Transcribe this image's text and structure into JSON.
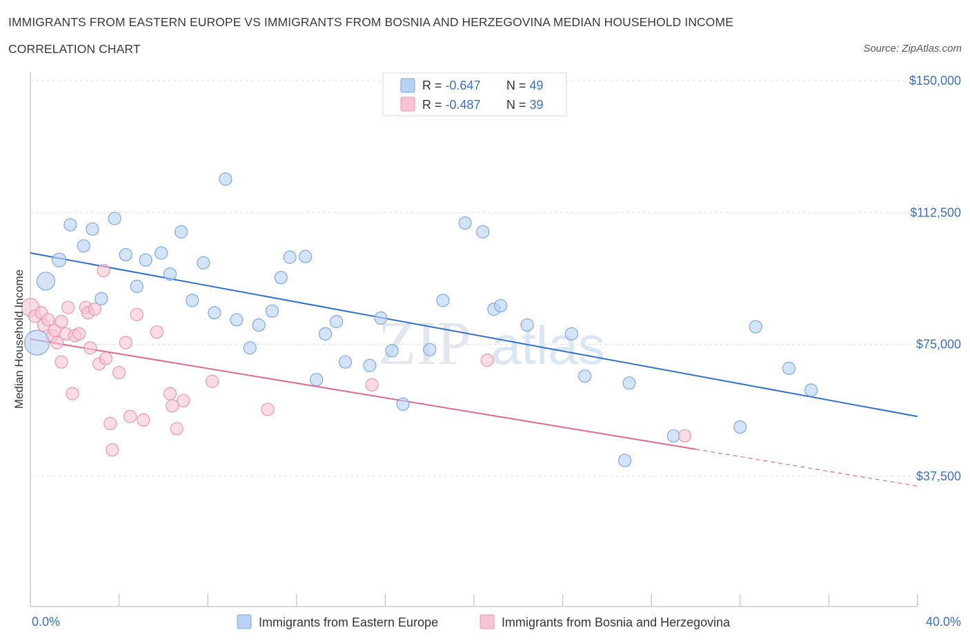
{
  "header": {
    "title_line1": "IMMIGRANTS FROM EASTERN EUROPE VS IMMIGRANTS FROM BOSNIA AND HERZEGOVINA MEDIAN HOUSEHOLD INCOME",
    "title_line2": "CORRELATION CHART",
    "source": "Source: ZipAtlas.com"
  },
  "watermark": {
    "part1": "ZIP",
    "part2": "atlas"
  },
  "colors": {
    "blue_fill": "#b8d2f3",
    "blue_stroke": "#7ea7de",
    "blue_line": "#2e6fd0",
    "pink_fill": "#f7c4d3",
    "pink_stroke": "#ec94ae",
    "pink_line": "#e0688f",
    "grid": "#d9dde3",
    "tick_text": "#3b6fc4"
  },
  "legend": {
    "entries": [
      {
        "r_label": "R = ",
        "r_value": "-0.647",
        "n_label": "N = ",
        "n_value": "49"
      },
      {
        "r_label": "R = ",
        "r_value": "-0.487",
        "n_label": "N = ",
        "n_value": "39"
      }
    ]
  },
  "chart_data": {
    "type": "scatter",
    "title": "IMMIGRANTS FROM EASTERN EUROPE VS IMMIGRANTS FROM BOSNIA AND HERZEGOVINA MEDIAN HOUSEHOLD INCOME CORRELATION CHART",
    "xlabel": "",
    "ylabel": "Median Household Income",
    "xlim": [
      0,
      40
    ],
    "ylim": [
      15000,
      153000
    ],
    "x_tick_labels": [
      "0.0%",
      "40.0%"
    ],
    "y_ticks": [
      37500,
      75000,
      112500,
      150000
    ],
    "y_tick_labels": [
      "$37,500",
      "$75,000",
      "$112,500",
      "$150,000"
    ],
    "grid": true,
    "legend_position": "top-center",
    "series": [
      {
        "name": "Immigrants from Eastern Europe",
        "color": "#b8d2f3",
        "trend": {
          "x": [
            0,
            40
          ],
          "y": [
            101000,
            54500
          ]
        },
        "points": [
          {
            "x": 0.3,
            "y": 75500,
            "size": 18
          },
          {
            "x": 0.7,
            "y": 93000,
            "size": 13
          },
          {
            "x": 1.3,
            "y": 99000,
            "size": 10
          },
          {
            "x": 1.8,
            "y": 109000,
            "size": 9
          },
          {
            "x": 2.4,
            "y": 103000,
            "size": 9
          },
          {
            "x": 2.8,
            "y": 107800,
            "size": 9
          },
          {
            "x": 3.2,
            "y": 88000,
            "size": 9
          },
          {
            "x": 3.8,
            "y": 110800,
            "size": 9
          },
          {
            "x": 4.3,
            "y": 100500,
            "size": 9
          },
          {
            "x": 4.8,
            "y": 91500,
            "size": 9
          },
          {
            "x": 5.2,
            "y": 99000,
            "size": 9
          },
          {
            "x": 5.9,
            "y": 101000,
            "size": 9
          },
          {
            "x": 6.3,
            "y": 95000,
            "size": 9
          },
          {
            "x": 6.8,
            "y": 107000,
            "size": 9
          },
          {
            "x": 7.3,
            "y": 87500,
            "size": 9
          },
          {
            "x": 7.8,
            "y": 98200,
            "size": 9
          },
          {
            "x": 8.3,
            "y": 84000,
            "size": 9
          },
          {
            "x": 8.8,
            "y": 122000,
            "size": 9
          },
          {
            "x": 9.3,
            "y": 82000,
            "size": 9
          },
          {
            "x": 9.9,
            "y": 74000,
            "size": 9
          },
          {
            "x": 10.3,
            "y": 80500,
            "size": 9
          },
          {
            "x": 10.9,
            "y": 84500,
            "size": 9
          },
          {
            "x": 11.3,
            "y": 94000,
            "size": 9
          },
          {
            "x": 11.7,
            "y": 99800,
            "size": 9
          },
          {
            "x": 12.4,
            "y": 100000,
            "size": 9
          },
          {
            "x": 12.9,
            "y": 65000,
            "size": 9
          },
          {
            "x": 13.3,
            "y": 78000,
            "size": 9
          },
          {
            "x": 13.8,
            "y": 81500,
            "size": 9
          },
          {
            "x": 14.2,
            "y": 70000,
            "size": 9
          },
          {
            "x": 15.3,
            "y": 69000,
            "size": 9
          },
          {
            "x": 15.8,
            "y": 82500,
            "size": 9
          },
          {
            "x": 16.3,
            "y": 73200,
            "size": 9
          },
          {
            "x": 16.8,
            "y": 58000,
            "size": 9
          },
          {
            "x": 18.0,
            "y": 73500,
            "size": 9
          },
          {
            "x": 18.6,
            "y": 87500,
            "size": 9
          },
          {
            "x": 19.6,
            "y": 109500,
            "size": 9
          },
          {
            "x": 20.4,
            "y": 107000,
            "size": 9
          },
          {
            "x": 20.9,
            "y": 85000,
            "size": 9
          },
          {
            "x": 21.2,
            "y": 86000,
            "size": 9
          },
          {
            "x": 22.4,
            "y": 80500,
            "size": 9
          },
          {
            "x": 24.4,
            "y": 78000,
            "size": 9
          },
          {
            "x": 25.0,
            "y": 66000,
            "size": 9
          },
          {
            "x": 27.0,
            "y": 64000,
            "size": 9
          },
          {
            "x": 26.8,
            "y": 42000,
            "size": 9
          },
          {
            "x": 29.0,
            "y": 49000,
            "size": 9
          },
          {
            "x": 32.0,
            "y": 51500,
            "size": 9
          },
          {
            "x": 32.7,
            "y": 80000,
            "size": 9
          },
          {
            "x": 34.2,
            "y": 68200,
            "size": 9
          },
          {
            "x": 35.2,
            "y": 62000,
            "size": 9
          }
        ]
      },
      {
        "name": "Immigrants from Bosnia and Herzegovina",
        "color": "#f7c4d3",
        "trend": {
          "x": [
            0,
            30
          ],
          "y": [
            76500,
            45200
          ]
        },
        "trend_dashed": {
          "x": [
            30,
            40
          ],
          "y": [
            45200,
            34700
          ]
        },
        "points": [
          {
            "x": 0.0,
            "y": 85500,
            "size": 13
          },
          {
            "x": 0.2,
            "y": 83000,
            "size": 9
          },
          {
            "x": 0.5,
            "y": 84000,
            "size": 9
          },
          {
            "x": 0.6,
            "y": 80500,
            "size": 9
          },
          {
            "x": 0.8,
            "y": 82000,
            "size": 9
          },
          {
            "x": 1.0,
            "y": 77500,
            "size": 9
          },
          {
            "x": 1.1,
            "y": 79000,
            "size": 9
          },
          {
            "x": 1.2,
            "y": 75500,
            "size": 9
          },
          {
            "x": 1.4,
            "y": 81500,
            "size": 9
          },
          {
            "x": 1.4,
            "y": 70000,
            "size": 9
          },
          {
            "x": 1.6,
            "y": 78000,
            "size": 9
          },
          {
            "x": 1.7,
            "y": 85500,
            "size": 9
          },
          {
            "x": 1.9,
            "y": 61000,
            "size": 9
          },
          {
            "x": 2.0,
            "y": 77500,
            "size": 9
          },
          {
            "x": 2.2,
            "y": 78000,
            "size": 9
          },
          {
            "x": 2.5,
            "y": 85500,
            "size": 9
          },
          {
            "x": 2.6,
            "y": 84000,
            "size": 9
          },
          {
            "x": 2.7,
            "y": 74000,
            "size": 9
          },
          {
            "x": 2.9,
            "y": 85000,
            "size": 9
          },
          {
            "x": 3.1,
            "y": 69500,
            "size": 9
          },
          {
            "x": 3.3,
            "y": 96000,
            "size": 9
          },
          {
            "x": 3.4,
            "y": 71000,
            "size": 9
          },
          {
            "x": 3.6,
            "y": 52500,
            "size": 9
          },
          {
            "x": 3.7,
            "y": 45000,
            "size": 9
          },
          {
            "x": 4.0,
            "y": 67000,
            "size": 9
          },
          {
            "x": 4.3,
            "y": 75500,
            "size": 9
          },
          {
            "x": 4.5,
            "y": 54500,
            "size": 9
          },
          {
            "x": 4.8,
            "y": 83500,
            "size": 9
          },
          {
            "x": 5.1,
            "y": 53500,
            "size": 9
          },
          {
            "x": 5.7,
            "y": 78500,
            "size": 9
          },
          {
            "x": 6.3,
            "y": 61000,
            "size": 9
          },
          {
            "x": 6.4,
            "y": 57500,
            "size": 9
          },
          {
            "x": 6.6,
            "y": 51000,
            "size": 9
          },
          {
            "x": 6.9,
            "y": 59000,
            "size": 9
          },
          {
            "x": 8.2,
            "y": 64500,
            "size": 9
          },
          {
            "x": 10.7,
            "y": 56500,
            "size": 9
          },
          {
            "x": 15.4,
            "y": 63500,
            "size": 9
          },
          {
            "x": 20.6,
            "y": 70500,
            "size": 9
          },
          {
            "x": 29.5,
            "y": 49000,
            "size": 9
          }
        ]
      }
    ]
  }
}
